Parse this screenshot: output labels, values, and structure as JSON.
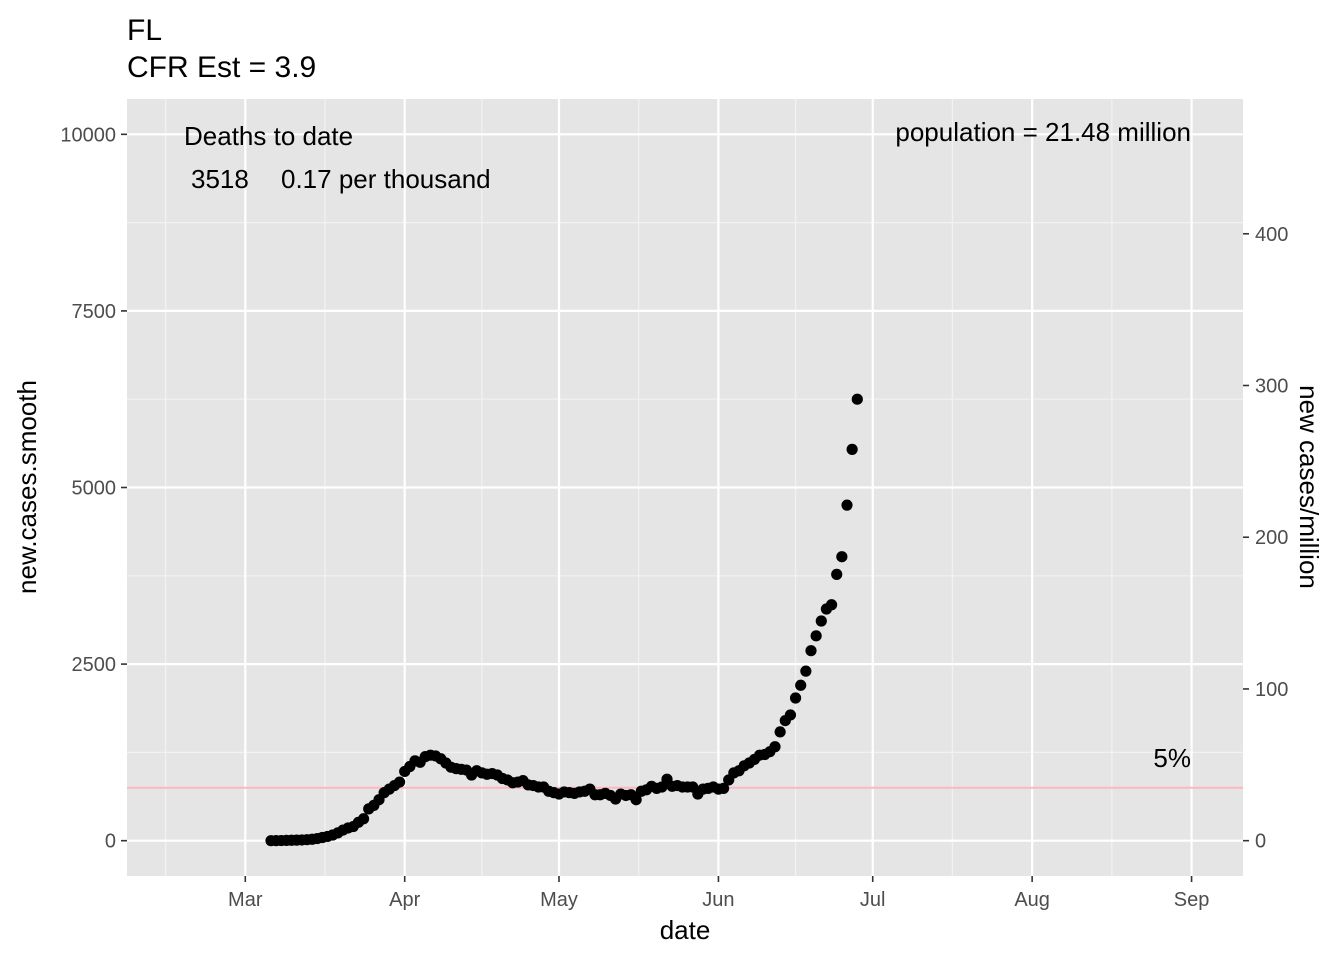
{
  "chart_data": {
    "type": "scatter",
    "title": "FL",
    "subtitle": "CFR Est = 3.9",
    "xlabel": "date",
    "ylabel": "new.cases.smooth",
    "y2label": "new cases/million",
    "x_tick_labels": [
      "Mar",
      "Apr",
      "May",
      "Jun",
      "Jul",
      "Aug",
      "Sep"
    ],
    "x_tick_dates": [
      "2020-03-01",
      "2020-04-01",
      "2020-05-01",
      "2020-06-01",
      "2020-07-01",
      "2020-08-01",
      "2020-09-01"
    ],
    "xlim": [
      "2020-02-07",
      "2020-09-11"
    ],
    "y_ticks": [
      0,
      2500,
      5000,
      7500,
      10000
    ],
    "ylim": [
      -500,
      10500
    ],
    "y2_ticks": [
      0,
      100,
      200,
      300,
      400
    ],
    "population_millions": 21.48,
    "grid": true,
    "reference_line": {
      "y": 750,
      "color": "#FFB6C1",
      "label": "5%"
    },
    "annotations": {
      "deaths_title": "Deaths to date",
      "deaths_value": "3518",
      "deaths_rate": "0.17 per thousand",
      "population": "population = 21.48 million"
    },
    "series": [
      {
        "color": "#000000",
        "points": [
          [
            "2020-03-06",
            0
          ],
          [
            "2020-03-07",
            1
          ],
          [
            "2020-03-08",
            2
          ],
          [
            "2020-03-09",
            4
          ],
          [
            "2020-03-10",
            6
          ],
          [
            "2020-03-11",
            8
          ],
          [
            "2020-03-12",
            10
          ],
          [
            "2020-03-13",
            14
          ],
          [
            "2020-03-14",
            20
          ],
          [
            "2020-03-15",
            30
          ],
          [
            "2020-03-16",
            45
          ],
          [
            "2020-03-17",
            60
          ],
          [
            "2020-03-18",
            80
          ],
          [
            "2020-03-19",
            110
          ],
          [
            "2020-03-20",
            150
          ],
          [
            "2020-03-21",
            180
          ],
          [
            "2020-03-22",
            200
          ],
          [
            "2020-03-23",
            260
          ],
          [
            "2020-03-24",
            310
          ],
          [
            "2020-03-25",
            450
          ],
          [
            "2020-03-26",
            500
          ],
          [
            "2020-03-27",
            580
          ],
          [
            "2020-03-28",
            680
          ],
          [
            "2020-03-29",
            730
          ],
          [
            "2020-03-30",
            780
          ],
          [
            "2020-03-31",
            830
          ],
          [
            "2020-04-01",
            980
          ],
          [
            "2020-04-02",
            1050
          ],
          [
            "2020-04-03",
            1130
          ],
          [
            "2020-04-04",
            1110
          ],
          [
            "2020-04-05",
            1190
          ],
          [
            "2020-04-06",
            1210
          ],
          [
            "2020-04-07",
            1200
          ],
          [
            "2020-04-08",
            1160
          ],
          [
            "2020-04-09",
            1100
          ],
          [
            "2020-04-10",
            1040
          ],
          [
            "2020-04-11",
            1020
          ],
          [
            "2020-04-12",
            1010
          ],
          [
            "2020-04-13",
            1000
          ],
          [
            "2020-04-14",
            930
          ],
          [
            "2020-04-15",
            990
          ],
          [
            "2020-04-16",
            960
          ],
          [
            "2020-04-17",
            940
          ],
          [
            "2020-04-18",
            950
          ],
          [
            "2020-04-19",
            930
          ],
          [
            "2020-04-20",
            880
          ],
          [
            "2020-04-21",
            860
          ],
          [
            "2020-04-22",
            820
          ],
          [
            "2020-04-23",
            830
          ],
          [
            "2020-04-24",
            850
          ],
          [
            "2020-04-25",
            790
          ],
          [
            "2020-04-26",
            780
          ],
          [
            "2020-04-27",
            760
          ],
          [
            "2020-04-28",
            760
          ],
          [
            "2020-04-29",
            700
          ],
          [
            "2020-04-30",
            680
          ],
          [
            "2020-05-01",
            660
          ],
          [
            "2020-05-02",
            690
          ],
          [
            "2020-05-03",
            680
          ],
          [
            "2020-05-04",
            670
          ],
          [
            "2020-05-05",
            690
          ],
          [
            "2020-05-06",
            700
          ],
          [
            "2020-05-07",
            730
          ],
          [
            "2020-05-08",
            650
          ],
          [
            "2020-05-09",
            650
          ],
          [
            "2020-05-10",
            670
          ],
          [
            "2020-05-11",
            640
          ],
          [
            "2020-05-12",
            590
          ],
          [
            "2020-05-13",
            660
          ],
          [
            "2020-05-14",
            640
          ],
          [
            "2020-05-15",
            650
          ],
          [
            "2020-05-16",
            580
          ],
          [
            "2020-05-17",
            700
          ],
          [
            "2020-05-18",
            720
          ],
          [
            "2020-05-19",
            770
          ],
          [
            "2020-05-20",
            740
          ],
          [
            "2020-05-21",
            760
          ],
          [
            "2020-05-22",
            870
          ],
          [
            "2020-05-23",
            770
          ],
          [
            "2020-05-24",
            780
          ],
          [
            "2020-05-25",
            760
          ],
          [
            "2020-05-26",
            760
          ],
          [
            "2020-05-27",
            760
          ],
          [
            "2020-05-28",
            660
          ],
          [
            "2020-05-29",
            730
          ],
          [
            "2020-05-30",
            740
          ],
          [
            "2020-05-31",
            760
          ],
          [
            "2020-06-01",
            730
          ],
          [
            "2020-06-02",
            740
          ],
          [
            "2020-06-03",
            860
          ],
          [
            "2020-06-04",
            960
          ],
          [
            "2020-06-05",
            990
          ],
          [
            "2020-06-06",
            1060
          ],
          [
            "2020-06-07",
            1100
          ],
          [
            "2020-06-08",
            1150
          ],
          [
            "2020-06-09",
            1210
          ],
          [
            "2020-06-10",
            1220
          ],
          [
            "2020-06-11",
            1260
          ],
          [
            "2020-06-12",
            1330
          ],
          [
            "2020-06-13",
            1540
          ],
          [
            "2020-06-14",
            1700
          ],
          [
            "2020-06-15",
            1780
          ],
          [
            "2020-06-16",
            2020
          ],
          [
            "2020-06-17",
            2200
          ],
          [
            "2020-06-18",
            2400
          ],
          [
            "2020-06-19",
            2690
          ],
          [
            "2020-06-20",
            2900
          ],
          [
            "2020-06-21",
            3110
          ],
          [
            "2020-06-22",
            3280
          ],
          [
            "2020-06-23",
            3340
          ],
          [
            "2020-06-24",
            3770
          ],
          [
            "2020-06-25",
            4020
          ],
          [
            "2020-06-26",
            4750
          ],
          [
            "2020-06-27",
            5540
          ],
          [
            "2020-06-28",
            6250
          ]
        ]
      }
    ]
  }
}
